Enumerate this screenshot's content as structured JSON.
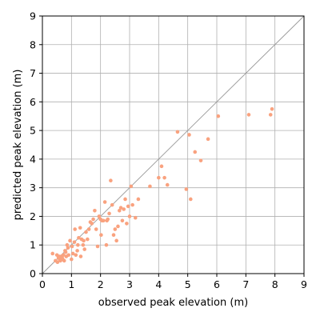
{
  "chart_data": {
    "type": "scatter",
    "title": "",
    "xlabel": "observed peak elevation (m)",
    "ylabel": "predicted peak elevation (m)",
    "xlim": [
      0,
      9
    ],
    "ylim": [
      0,
      9
    ],
    "xticks": [
      "0",
      "1",
      "2",
      "3",
      "4",
      "5",
      "6",
      "7",
      "8",
      "9"
    ],
    "yticks": [
      "0",
      "1",
      "2",
      "3",
      "4",
      "5",
      "6",
      "7",
      "8",
      "9"
    ],
    "grid": true,
    "reference_line": "y = x",
    "point_color": "#f9a27f",
    "line_color": "#999999",
    "grid_color": "#b0b0b0",
    "series": [
      {
        "x": [
          0.35,
          0.45,
          0.5,
          0.52,
          0.55,
          0.58,
          0.6,
          0.62,
          0.65,
          0.68,
          0.7,
          0.72,
          0.75,
          0.78,
          0.8,
          0.82,
          0.85,
          0.88,
          0.9,
          0.95,
          1.0,
          1.02,
          1.05,
          1.1,
          1.12,
          1.15,
          1.2,
          1.22,
          1.25,
          1.3,
          1.32,
          1.35,
          1.4,
          1.42,
          1.45,
          1.5,
          1.55,
          1.6,
          1.65,
          1.7,
          1.75,
          1.8,
          1.85,
          1.9,
          1.95,
          2.0,
          2.02,
          2.05,
          2.1,
          2.15,
          2.2,
          2.22,
          2.25,
          2.3,
          2.35,
          2.4,
          2.45,
          2.5,
          2.55,
          2.6,
          2.65,
          2.7,
          2.75,
          2.8,
          2.85,
          2.9,
          2.95,
          3.0,
          3.05,
          3.1,
          3.2,
          3.3,
          3.7,
          4.0,
          4.1,
          4.2,
          4.3,
          4.65,
          4.95,
          5.05,
          5.1,
          5.25,
          5.45,
          5.7,
          6.05,
          7.1,
          7.85,
          7.9
        ],
        "y": [
          0.7,
          0.45,
          0.65,
          0.4,
          0.55,
          0.6,
          0.5,
          0.45,
          0.6,
          0.55,
          0.5,
          0.65,
          0.45,
          0.8,
          0.75,
          0.6,
          1.0,
          0.9,
          0.65,
          1.15,
          0.5,
          0.95,
          0.7,
          1.1,
          1.55,
          0.65,
          0.8,
          1.0,
          1.25,
          1.6,
          0.6,
          1.2,
          1.0,
          1.15,
          0.85,
          1.45,
          1.2,
          1.55,
          1.8,
          1.75,
          1.9,
          2.2,
          1.55,
          0.95,
          2.0,
          1.9,
          1.35,
          1.85,
          1.85,
          2.5,
          1.0,
          1.85,
          1.9,
          2.1,
          3.25,
          2.4,
          1.35,
          1.55,
          1.15,
          1.65,
          2.2,
          2.3,
          1.85,
          2.25,
          2.6,
          1.75,
          2.35,
          2.0,
          3.05,
          2.4,
          1.95,
          2.6,
          3.05,
          3.35,
          3.75,
          3.35,
          3.1,
          4.95,
          2.95,
          4.85,
          2.6,
          4.25,
          3.95,
          4.7,
          5.5,
          5.55,
          5.55,
          5.75
        ]
      }
    ]
  }
}
